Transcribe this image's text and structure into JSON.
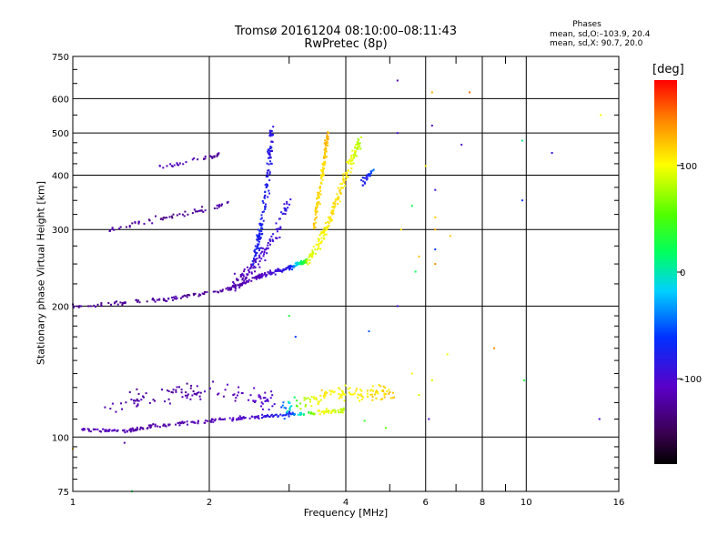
{
  "title": "Tromsø 20161204 08:10:00–08:11:43",
  "subtitle": "RwPretec (8p)",
  "phases": {
    "title": "Phases",
    "o_line": "mean, sd,O:–103.9, 20.4",
    "x_line": "mean, sd,X:  90.7, 20.0"
  },
  "colorbar": {
    "label": "[deg]",
    "ticks": [
      "100",
      "0",
      "–100"
    ],
    "tick_values": [
      100,
      0,
      -100
    ],
    "range": [
      -180,
      180
    ]
  },
  "chart_data": {
    "type": "scatter",
    "xlabel": "Frequency [MHz]",
    "ylabel": "Stationary phase Virtual Height [km]",
    "xscale": "log",
    "yscale": "log",
    "xlim": [
      1,
      16
    ],
    "ylim": [
      75,
      750
    ],
    "x_ticks": [
      1,
      2,
      4,
      6,
      8,
      10,
      16
    ],
    "x_tick_labels": [
      "1",
      "2",
      "4",
      "6",
      "8",
      "10",
      "16"
    ],
    "x_minor_ticks": [
      3,
      5,
      7,
      9
    ],
    "y_ticks": [
      75,
      100,
      200,
      300,
      400,
      500,
      600,
      750
    ],
    "y_tick_labels": [
      "75",
      "100",
      "200",
      "300",
      "400",
      "500",
      "600",
      "750"
    ],
    "grid": true,
    "traces": [
      {
        "f": [
          1.0,
          1.6,
          2.2,
          2.6,
          3.0,
          3.3
        ],
        "h": [
          200,
          207,
          218,
          235,
          245,
          255
        ],
        "phase": [
          -125,
          -125,
          -120,
          -110,
          -80,
          70
        ],
        "spread": 0.012,
        "count": 260
      },
      {
        "f": [
          3.3,
          3.5,
          3.7,
          3.9,
          4.1,
          4.3
        ],
        "h": [
          255,
          280,
          320,
          370,
          430,
          480
        ],
        "phase": [
          90,
          100,
          110,
          110,
          100,
          80
        ],
        "spread": 0.03,
        "count": 180
      },
      {
        "f": [
          3.4,
          3.55,
          3.65
        ],
        "h": [
          300,
          400,
          500
        ],
        "phase": [
          120,
          110,
          130
        ],
        "spread": 0.02,
        "count": 120
      },
      {
        "f": [
          2.5,
          2.6,
          2.7,
          2.75
        ],
        "h": [
          250,
          300,
          400,
          520
        ],
        "phase": [
          -75,
          -75,
          -80,
          -85
        ],
        "spread": 0.03,
        "count": 150
      },
      {
        "f": [
          2.2,
          2.5,
          2.8,
          3.0
        ],
        "h": [
          220,
          245,
          290,
          350
        ],
        "phase": [
          -120,
          -110,
          -95,
          -85
        ],
        "spread": 0.04,
        "count": 110
      },
      {
        "f": [
          1.2,
          1.6,
          2.0,
          2.2
        ],
        "h": [
          300,
          320,
          335,
          345
        ],
        "phase": [
          -120,
          -130,
          -125,
          -120
        ],
        "spread": 0.015,
        "count": 60
      },
      {
        "f": [
          1.05,
          1.3,
          1.5
        ],
        "h": [
          104,
          103,
          106
        ],
        "phase": [
          -110,
          -115,
          -120
        ],
        "spread": 0.01,
        "count": 70
      },
      {
        "f": [
          1.5,
          2.0,
          2.5,
          3.0,
          3.5,
          4.0
        ],
        "h": [
          106,
          109,
          111,
          113,
          114,
          115
        ],
        "phase": [
          -120,
          -115,
          -100,
          -70,
          100,
          80
        ],
        "spread": 0.012,
        "count": 180
      },
      {
        "f": [
          1.2,
          1.6,
          2.0,
          2.4,
          2.8
        ],
        "h": [
          118,
          124,
          128,
          125,
          120
        ],
        "phase": [
          -120,
          -120,
          -118,
          -110,
          -100
        ],
        "spread": 0.05,
        "count": 110
      },
      {
        "f": [
          2.9,
          3.2,
          3.6,
          4.0,
          4.6,
          5.1
        ],
        "h": [
          116,
          120,
          124,
          126,
          126,
          127
        ],
        "phase": [
          -60,
          80,
          110,
          100,
          110,
          120
        ],
        "spread": 0.04,
        "count": 130
      },
      {
        "f": [
          1.5,
          1.65,
          2.0,
          2.1
        ],
        "h": [
          418,
          420,
          440,
          445
        ],
        "phase": [
          -110,
          -110,
          -120,
          -125
        ],
        "spread": 0.01,
        "count": 35
      },
      {
        "f": [
          4.3,
          4.5,
          4.7
        ],
        "h": [
          380,
          400,
          420
        ],
        "phase": [
          -80,
          -70,
          -20
        ],
        "spread": 0.02,
        "count": 25
      }
    ],
    "scattered_points": [
      [
        5.2,
        660,
        -120
      ],
      [
        6.2,
        620,
        130
      ],
      [
        7.5,
        620,
        150
      ],
      [
        6.2,
        520,
        -110
      ],
      [
        5.2,
        500,
        -100
      ],
      [
        7.2,
        470,
        -100
      ],
      [
        9.8,
        480,
        10
      ],
      [
        11.4,
        450,
        -90
      ],
      [
        14.6,
        550,
        100
      ],
      [
        6.0,
        420,
        110
      ],
      [
        6.3,
        370,
        -90
      ],
      [
        5.6,
        340,
        20
      ],
      [
        6.3,
        320,
        120
      ],
      [
        6.3,
        300,
        130
      ],
      [
        6.8,
        290,
        120
      ],
      [
        5.3,
        300,
        110
      ],
      [
        5.8,
        260,
        120
      ],
      [
        5.7,
        240,
        20
      ],
      [
        6.3,
        270,
        -60
      ],
      [
        5.2,
        200,
        -100
      ],
      [
        6.3,
        250,
        140
      ],
      [
        9.8,
        350,
        -60
      ],
      [
        6.7,
        155,
        100
      ],
      [
        8.5,
        160,
        140
      ],
      [
        9.9,
        135,
        30
      ],
      [
        14.5,
        110,
        -100
      ],
      [
        5.6,
        140,
        100
      ],
      [
        4.9,
        105,
        60
      ],
      [
        3.0,
        190,
        30
      ],
      [
        1.35,
        75,
        20
      ],
      [
        1.0,
        94,
        120
      ],
      [
        1.3,
        97,
        -120
      ],
      [
        6.1,
        110,
        -100
      ],
      [
        5.8,
        125,
        90
      ],
      [
        6.2,
        135,
        90
      ],
      [
        4.4,
        109,
        40
      ],
      [
        3.1,
        170,
        -60
      ],
      [
        4.5,
        175,
        -50
      ]
    ]
  }
}
